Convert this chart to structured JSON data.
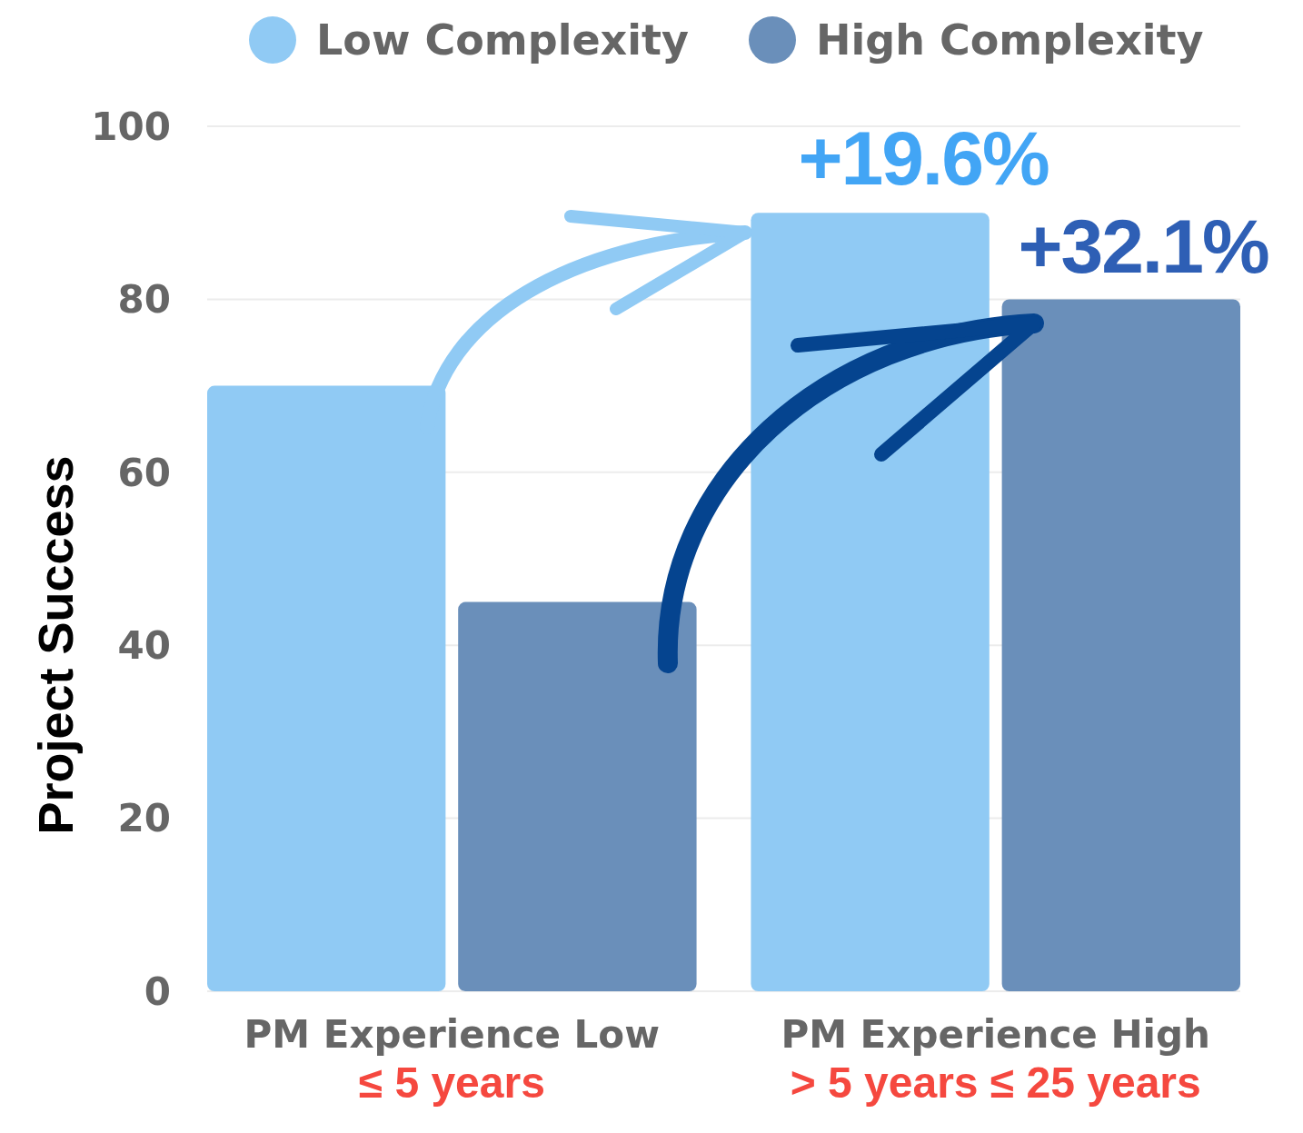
{
  "chart_data": {
    "type": "bar",
    "ylabel": "Project Success",
    "categories": [
      "PM Experience Low",
      "PM Experience High"
    ],
    "series": [
      {
        "name": "Low Complexity",
        "color": "#90caf4",
        "values": [
          70,
          90
        ]
      },
      {
        "name": "High Complexity",
        "color": "#6a8fba",
        "values": [
          45,
          80
        ]
      }
    ],
    "ylim": [
      0,
      100
    ],
    "yticks": [
      0,
      20,
      40,
      60,
      80,
      100
    ],
    "grid": "y",
    "legend": "top",
    "annotations": [
      "+19.6%",
      "+32.1%",
      "≤ 5 years",
      "> 5 years ≤ 25 years"
    ]
  }
}
